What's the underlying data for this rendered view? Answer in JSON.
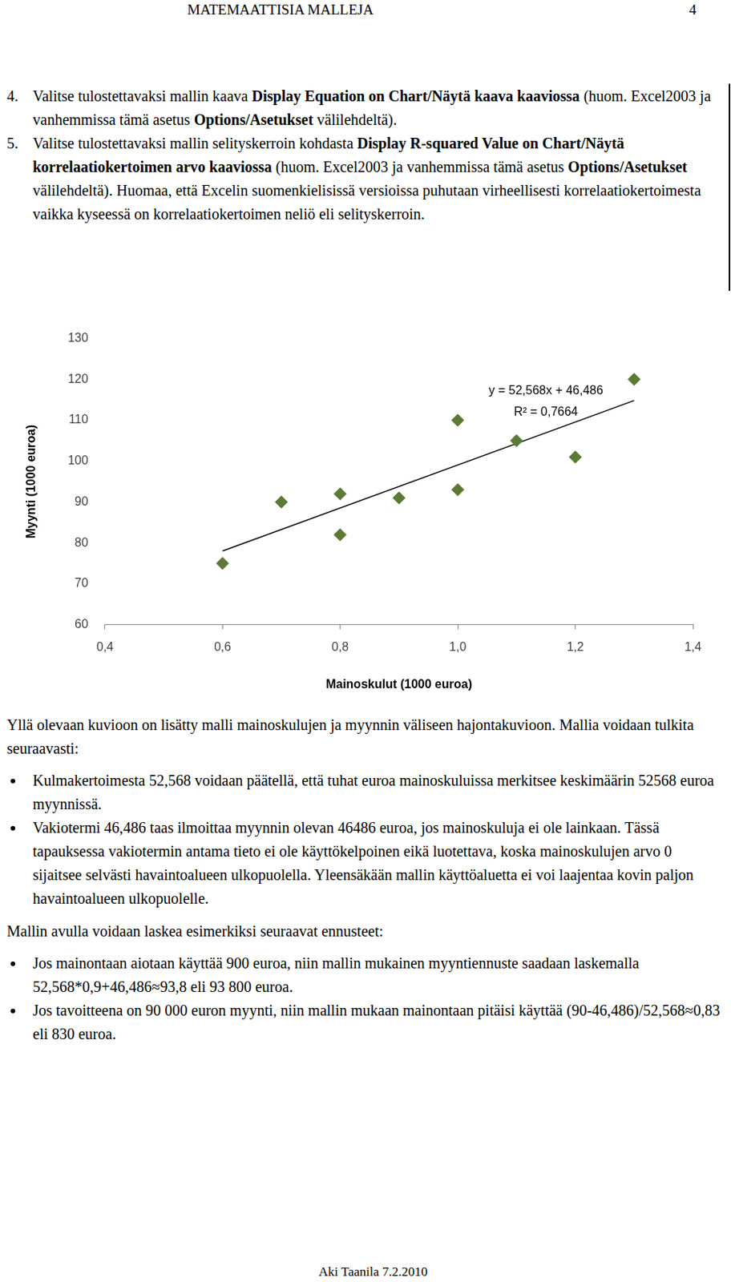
{
  "header": {
    "title": "MATEMAATTISIA MALLEJA",
    "page": "4"
  },
  "steps": [
    {
      "number": "4.",
      "runs": [
        "Valitse tulostettavaksi mallin kaava ",
        "Display Equation on Chart/Näytä kaava kaaviossa",
        " (huom. Excel2003 ja vanhemmissa tämä asetus ",
        "Options/Asetukset",
        " välilehdeltä)."
      ]
    },
    {
      "number": "5.",
      "runs": [
        "Valitse tulostettavaksi mallin selityskerroin kohdasta ",
        "Display R-squared Value on Chart/Näytä korrelaatiokertoimen arvo kaaviossa",
        " (huom. Excel2003 ja vanhemmissa tämä asetus ",
        "Options/Asetukset",
        " välilehdeltä). Huomaa, että Excelin suomenkielisissä versioissa puhutaan virheellisesti korrelaatiokertoimesta vaikka kyseessä on korrelaatiokertoimen neliö eli selityskerroin."
      ]
    }
  ],
  "chart_data": {
    "type": "scatter",
    "x_label": "Mainoskulut (1000 euroa)",
    "y_label": "Myynti (1000 euroa)",
    "x": [
      0.6,
      0.7,
      0.8,
      0.8,
      0.9,
      1.0,
      1.0,
      1.1,
      1.2,
      1.3
    ],
    "values": [
      75,
      90,
      92,
      82,
      91,
      110,
      93,
      105,
      101,
      120
    ],
    "color": "#5b7a35",
    "marker": "diamond",
    "xlim": [
      0.4,
      1.4
    ],
    "xticks": [
      {
        "value": 0.4,
        "label": "0,4"
      },
      {
        "value": 0.6,
        "label": "0,6"
      },
      {
        "value": 0.8,
        "label": "0,8"
      },
      {
        "value": 1.0,
        "label": "1,0"
      },
      {
        "value": 1.2,
        "label": "1,2"
      },
      {
        "value": 1.4,
        "label": "1,4"
      }
    ],
    "ylim": [
      60,
      130
    ],
    "yticks": [
      60,
      70,
      80,
      90,
      100,
      110,
      120,
      130
    ],
    "grid": false,
    "trendline": {
      "slope": 52.568,
      "intercept": 46.486,
      "color": "#000000",
      "equation_label": "y = 52,568x + 46,486",
      "r_squared_label": "R² = 0,7664"
    }
  },
  "sections": [
    {
      "paragraph": "Yllä olevaan kuvioon on lisätty malli mainoskulujen ja myynnin väliseen hajontakuvioon. Mallia voidaan tulkita seuraavasti:",
      "bullets": [
        "Kulmakertoimesta 52,568 voidaan päätellä, että tuhat euroa mainoskuluissa merkitsee keskimäärin 52568 euroa myynnissä.",
        "Vakiotermi 46,486 taas ilmoittaa myynnin olevan 46486 euroa, jos mainoskuluja ei ole lainkaan. Tässä tapauksessa vakiotermin antama tieto ei ole käyttökelpoinen eikä luotettava, koska mainoskulujen arvo 0 sijaitsee selvästi havaintoalueen ulkopuolella. Yleensäkään mallin käyttöaluetta ei voi laajentaa kovin paljon havaintoalueen ulkopuolelle."
      ]
    },
    {
      "paragraph": "Mallin avulla voidaan laskea esimerkiksi seuraavat ennusteet:",
      "bullets": [
        "Jos mainontaan aiotaan käyttää 900 euroa, niin mallin mukainen myyntiennuste saadaan laskemalla 52,568*0,9+46,486≈93,8 eli 93 800 euroa.",
        "Jos tavoitteena on 90 000 euron myynti, niin mallin mukaan mainontaan pitäisi käyttää (90-46,486)/52,568≈0,83 eli 830 euroa."
      ]
    }
  ],
  "footer": "Aki Taanila 7.2.2010"
}
